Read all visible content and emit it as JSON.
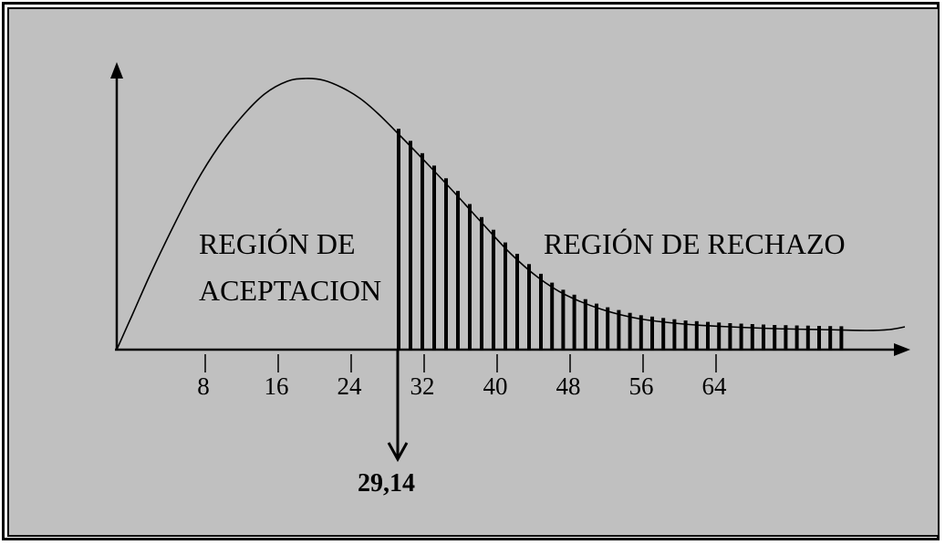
{
  "diagram": {
    "region_accept_line1": "REGIÓN DE",
    "region_accept_line2": "ACEPTACION",
    "region_reject": "REGIÓN DE RECHAZO",
    "critical_value_label": "29,14",
    "critical_value": 29.14,
    "tick_labels": [
      "8",
      "16",
      "24",
      "32",
      "40",
      "48",
      "56",
      "64"
    ],
    "tick_values": [
      8,
      16,
      24,
      32,
      40,
      48,
      56,
      64
    ],
    "colors": {
      "background": "#c0c0c0",
      "ink": "#000000"
    }
  }
}
